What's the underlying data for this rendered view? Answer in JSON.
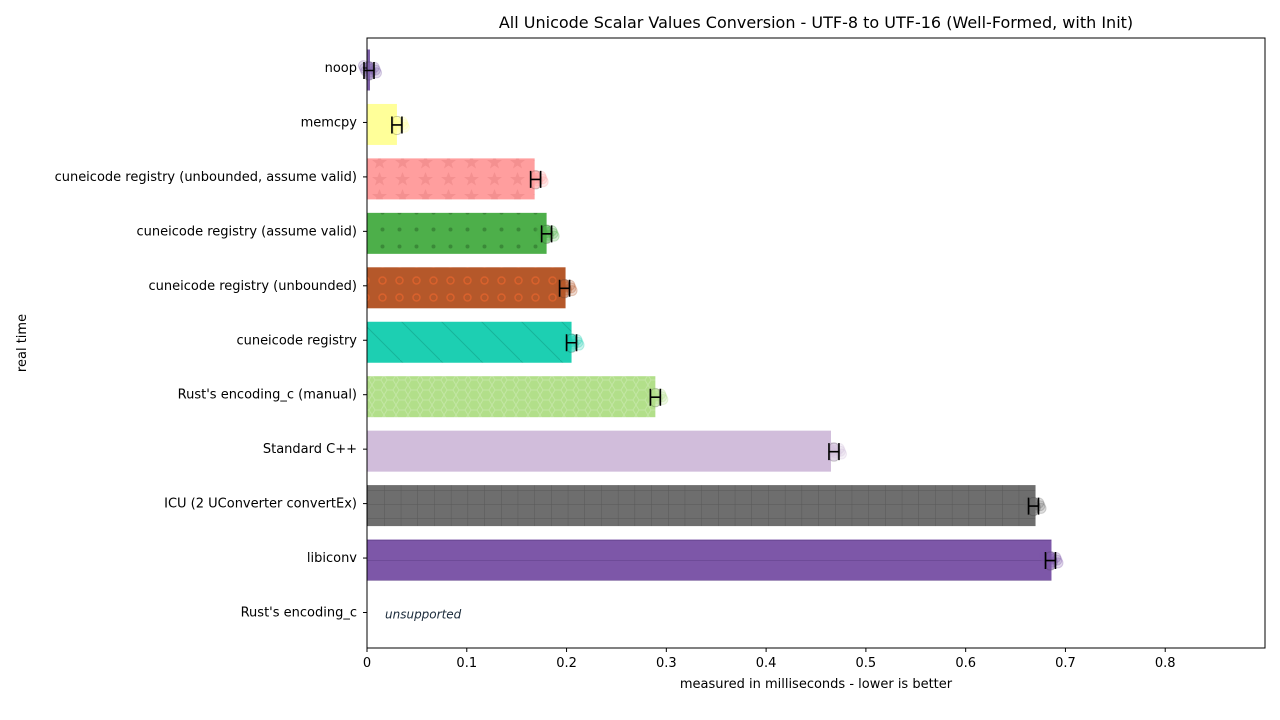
{
  "chart_data": {
    "type": "bar",
    "orientation": "horizontal",
    "title": "All Unicode Scalar Values Conversion - UTF-8 to UTF-16 (Well-Formed, with Init)",
    "xlabel": "measured in milliseconds - lower is better",
    "ylabel": "real time",
    "xlim": [
      0,
      0.9
    ],
    "x_ticks": [
      "0",
      "0.1",
      "0.2",
      "0.3",
      "0.4",
      "0.5",
      "0.6",
      "0.7",
      "0.8"
    ],
    "grid": false,
    "legend": "none",
    "categories": [
      "noop",
      "memcpy",
      "cuneicode registry (unbounded, assume valid)",
      "cuneicode registry (assume valid)",
      "cuneicode registry (unbounded)",
      "cuneicode registry",
      "Rust's encoding_c (manual)",
      "Standard C++",
      "ICU (2 UConverter convertEx)",
      "libiconv",
      "Rust's encoding_c"
    ],
    "values": [
      0.003,
      0.03,
      0.168,
      0.18,
      0.199,
      0.205,
      0.289,
      0.465,
      0.67,
      0.686,
      null
    ],
    "error_markers": [
      0.002,
      0.03,
      0.169,
      0.18,
      0.198,
      0.205,
      0.289,
      0.468,
      0.668,
      0.685,
      null
    ],
    "annotations": [
      {
        "category": "Rust's encoding_c",
        "text": "unsupported"
      }
    ],
    "colors": [
      "#7d5fa8",
      "#ffff99",
      "#ff9e9e",
      "#4daf4a",
      "#b5582a",
      "#1dcfb2",
      "#b2df8a",
      "#d1bddb",
      "#6e6e6e",
      "#7d57a8",
      "#ffffff"
    ],
    "patterns": [
      "none",
      "none",
      "stars",
      "dots",
      "circles",
      "diagonal",
      "hexes",
      "none",
      "grid",
      "hlines",
      "none"
    ]
  }
}
